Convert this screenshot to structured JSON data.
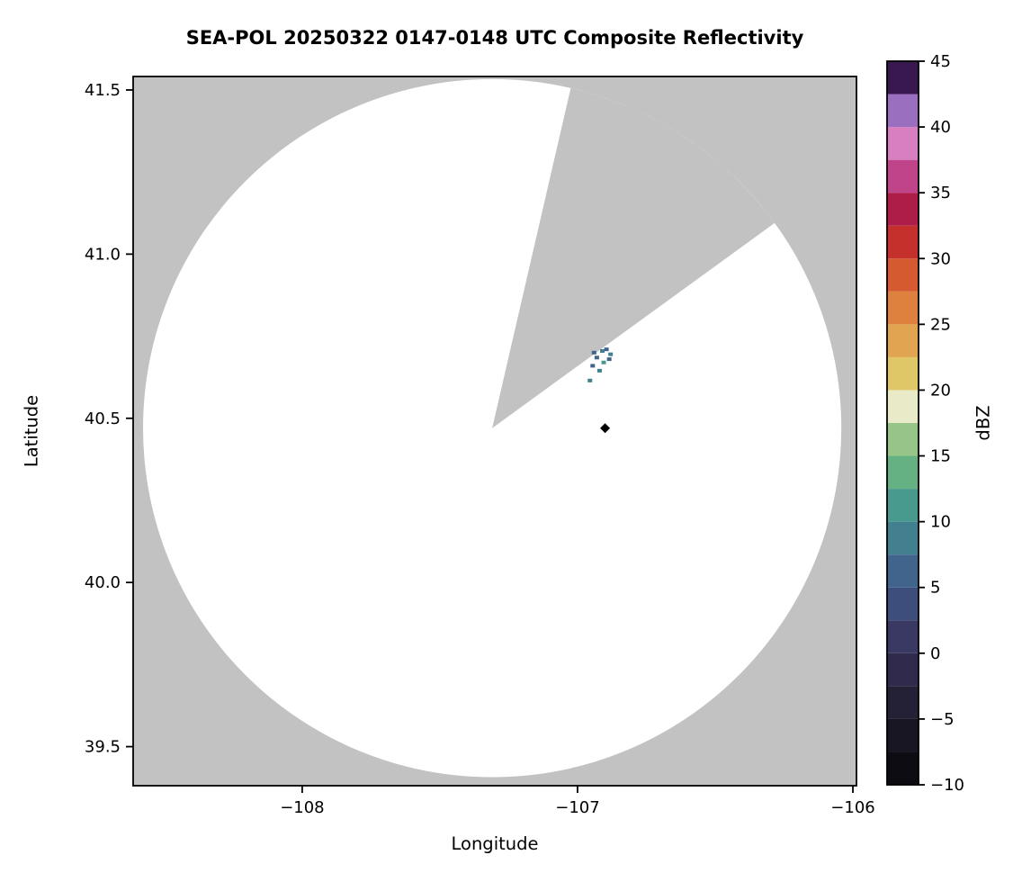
{
  "chart_data": {
    "type": "heatmap",
    "title": "SEA-POL 20250322 0147-0148 UTC Composite Reflectivity",
    "xlabel": "Longitude",
    "ylabel": "Latitude",
    "xlim": [
      -108.614,
      -105.987
    ],
    "ylim": [
      39.381,
      41.541
    ],
    "grid": false,
    "xticks": [
      {
        "value": -108,
        "label": "−108"
      },
      {
        "value": -107,
        "label": "−107"
      },
      {
        "value": -106,
        "label": "−106"
      }
    ],
    "yticks": [
      {
        "value": 39.5,
        "label": "39.5"
      },
      {
        "value": 40.0,
        "label": "40.0"
      },
      {
        "value": 40.5,
        "label": "40.5"
      },
      {
        "value": 41.0,
        "label": "41.0"
      },
      {
        "value": 41.5,
        "label": "41.5"
      }
    ],
    "colors": {
      "no_data": "#c2c2c2",
      "coverage": "#ffffff",
      "spine": "#000000"
    },
    "coverage": {
      "center_lon": -107.31,
      "center_lat": 40.47,
      "radius_lon": 1.268,
      "radius_lat": 1.063,
      "missing_sector_deg": [
        36,
        77
      ]
    },
    "echoes": [
      {
        "lon": -106.94,
        "lat": 40.7,
        "dbz": 5
      },
      {
        "lon": -106.91,
        "lat": 40.705,
        "dbz": 7.5
      },
      {
        "lon": -106.895,
        "lat": 40.71,
        "dbz": 5
      },
      {
        "lon": -106.88,
        "lat": 40.695,
        "dbz": 7.5
      },
      {
        "lon": -106.93,
        "lat": 40.685,
        "dbz": 5
      },
      {
        "lon": -106.885,
        "lat": 40.68,
        "dbz": 5
      },
      {
        "lon": -106.905,
        "lat": 40.67,
        "dbz": 10
      },
      {
        "lon": -106.945,
        "lat": 40.66,
        "dbz": 5
      },
      {
        "lon": -106.92,
        "lat": 40.645,
        "dbz": 7.5
      },
      {
        "lon": -106.955,
        "lat": 40.615,
        "dbz": 7.5
      }
    ],
    "site_marker": {
      "lon": -106.9,
      "lat": 40.47,
      "shape": "diamond",
      "color": "#000000"
    },
    "colorbar": {
      "label": "dBZ",
      "min": -10,
      "max": 45,
      "band_width": 2.5,
      "ticks": [
        {
          "value": -10,
          "label": "−10"
        },
        {
          "value": -5,
          "label": "−5"
        },
        {
          "value": 0,
          "label": "0"
        },
        {
          "value": 5,
          "label": "5"
        },
        {
          "value": 10,
          "label": "10"
        },
        {
          "value": 15,
          "label": "15"
        },
        {
          "value": 20,
          "label": "20"
        },
        {
          "value": 25,
          "label": "25"
        },
        {
          "value": 30,
          "label": "30"
        },
        {
          "value": 35,
          "label": "35"
        },
        {
          "value": 40,
          "label": "40"
        },
        {
          "value": 45,
          "label": "45"
        }
      ],
      "stops": [
        {
          "value": -10.0,
          "color": "#0c0c12"
        },
        {
          "value": -7.5,
          "color": "#181622"
        },
        {
          "value": -5.0,
          "color": "#242036"
        },
        {
          "value": -2.5,
          "color": "#302b4c"
        },
        {
          "value": 0.0,
          "color": "#393963"
        },
        {
          "value": 2.5,
          "color": "#3e4e7c"
        },
        {
          "value": 5.0,
          "color": "#41648c"
        },
        {
          "value": 7.5,
          "color": "#428090"
        },
        {
          "value": 10.0,
          "color": "#499a8e"
        },
        {
          "value": 12.5,
          "color": "#65b184"
        },
        {
          "value": 15.0,
          "color": "#97c588"
        },
        {
          "value": 17.5,
          "color": "#e9ebc8"
        },
        {
          "value": 20.0,
          "color": "#dfc768"
        },
        {
          "value": 22.5,
          "color": "#e1a450"
        },
        {
          "value": 25.0,
          "color": "#de813e"
        },
        {
          "value": 27.5,
          "color": "#d65a30"
        },
        {
          "value": 30.0,
          "color": "#c5302c"
        },
        {
          "value": 32.5,
          "color": "#ae1c48"
        },
        {
          "value": 35.0,
          "color": "#c04489"
        },
        {
          "value": 37.5,
          "color": "#d77fc0"
        },
        {
          "value": 40.0,
          "color": "#9b6fc0"
        },
        {
          "value": 42.5,
          "color": "#38184f"
        }
      ]
    }
  }
}
